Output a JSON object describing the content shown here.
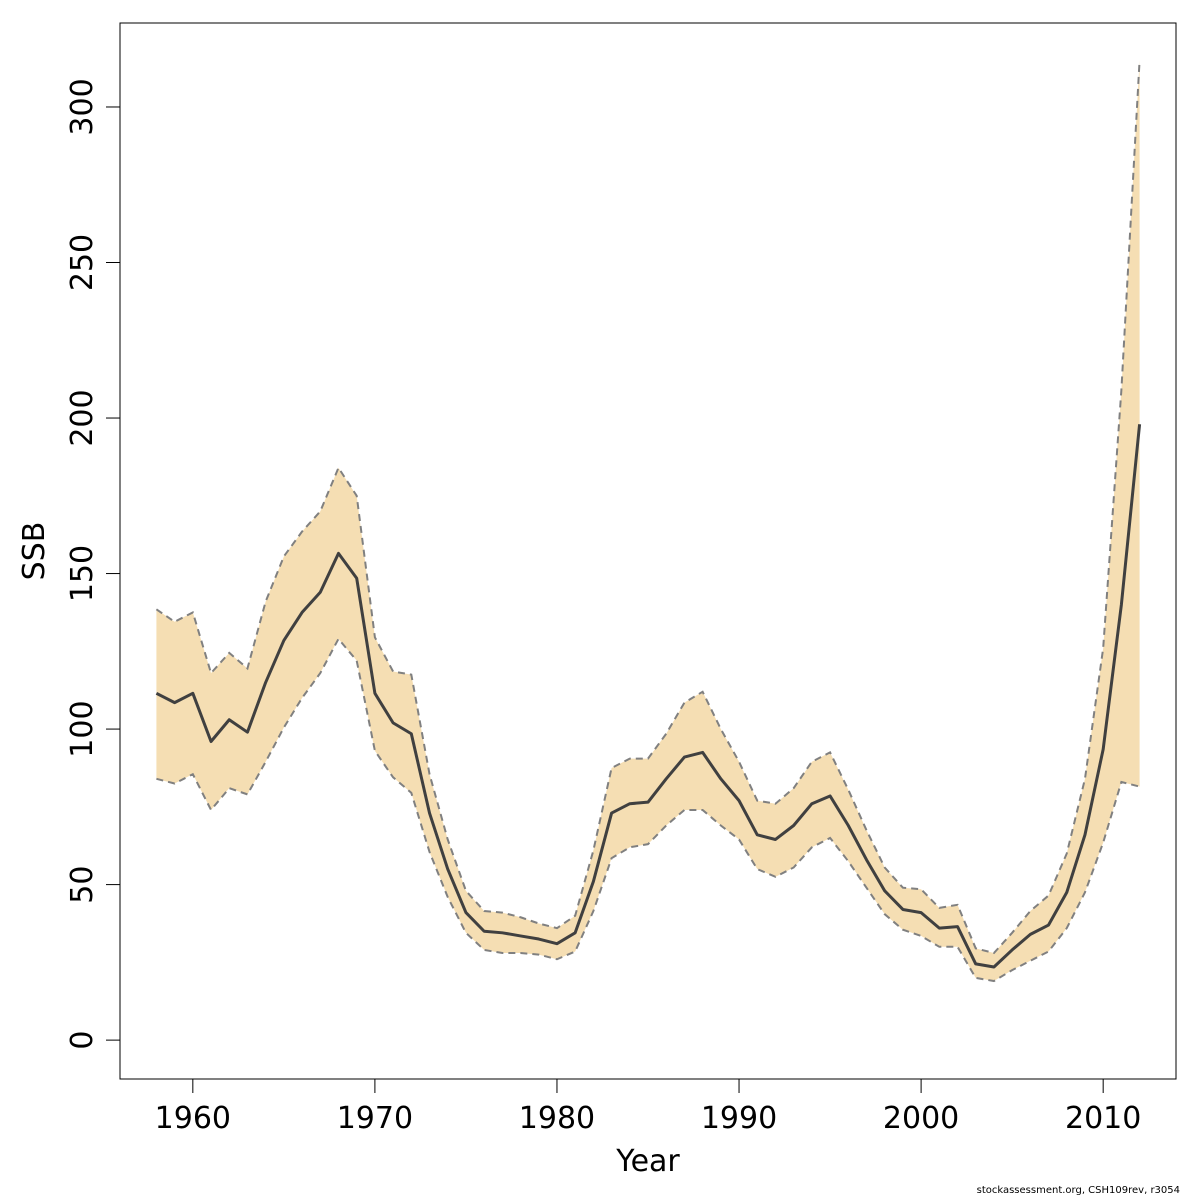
{
  "chart_data": {
    "type": "area",
    "title": "",
    "xlabel": "Year",
    "ylabel": "SSB",
    "xlim": [
      1956,
      2014
    ],
    "ylim": [
      -12.5,
      327
    ],
    "x_ticks": [
      1960,
      1970,
      1980,
      1990,
      2000,
      2010
    ],
    "y_ticks": [
      0,
      50,
      100,
      150,
      200,
      250,
      300
    ],
    "grid": false,
    "colors": {
      "band": "#f5deb3",
      "line": "#404040",
      "bounds": "#808080"
    },
    "x": [
      1958,
      1959,
      1960,
      1961,
      1962,
      1963,
      1964,
      1965,
      1966,
      1967,
      1968,
      1969,
      1970,
      1971,
      1972,
      1973,
      1974,
      1975,
      1976,
      1977,
      1978,
      1979,
      1980,
      1981,
      1982,
      1983,
      1984,
      1985,
      1986,
      1987,
      1988,
      1989,
      1990,
      1991,
      1992,
      1993,
      1994,
      1995,
      1996,
      1997,
      1998,
      1999,
      2000,
      2001,
      2002,
      2003,
      2004,
      2005,
      2006,
      2007,
      2008,
      2009,
      2010,
      2011,
      2012
    ],
    "series": [
      {
        "role": "estimate",
        "values": [
          111.5,
          108.5,
          111.5,
          96,
          103,
          99,
          115,
          128.5,
          137.5,
          144,
          156.5,
          148.5,
          111.5,
          102,
          98.5,
          73,
          55,
          41,
          35,
          34.5,
          33.5,
          32.5,
          31,
          34.5,
          51,
          73,
          76,
          76.5,
          84,
          91,
          92.5,
          84,
          77,
          66,
          64.5,
          69,
          76,
          78.5,
          69,
          58,
          48,
          42,
          41,
          36,
          36.5,
          24.5,
          23.5,
          29,
          34,
          37,
          47.5,
          66,
          93.5,
          140,
          198
        ]
      },
      {
        "role": "upper",
        "values": [
          138.5,
          134.5,
          137.5,
          118,
          124.5,
          119.5,
          141,
          155.5,
          163.5,
          170,
          184,
          175,
          129.5,
          118.5,
          117.5,
          85.5,
          64.5,
          48,
          41.5,
          41,
          39.5,
          37.5,
          36,
          40,
          61,
          87.5,
          90.5,
          90.5,
          98.5,
          108.5,
          112,
          100,
          89.5,
          77,
          76,
          81,
          89.5,
          92.5,
          80.5,
          67.5,
          55.5,
          49,
          48.5,
          42.5,
          43.5,
          29.5,
          28,
          34.5,
          41.5,
          46.5,
          60,
          84,
          126,
          209,
          315
        ]
      },
      {
        "role": "lower",
        "values": [
          84,
          82.5,
          85.5,
          74,
          81,
          79,
          89.5,
          100.5,
          110,
          118,
          129,
          122,
          93,
          84.5,
          79.5,
          60.5,
          46,
          34.5,
          29,
          28,
          28,
          27.5,
          26,
          28.5,
          41.5,
          58.5,
          62,
          63,
          69,
          74,
          74,
          69,
          64.5,
          55,
          52.5,
          55.5,
          62,
          65,
          57.5,
          49,
          40.5,
          35.5,
          33.5,
          30,
          30,
          20,
          19,
          22.5,
          25.5,
          28.5,
          36,
          47.5,
          63.5,
          83,
          81.5
        ]
      }
    ]
  },
  "footer": "stockassessment.org, CSH109rev, r3054"
}
